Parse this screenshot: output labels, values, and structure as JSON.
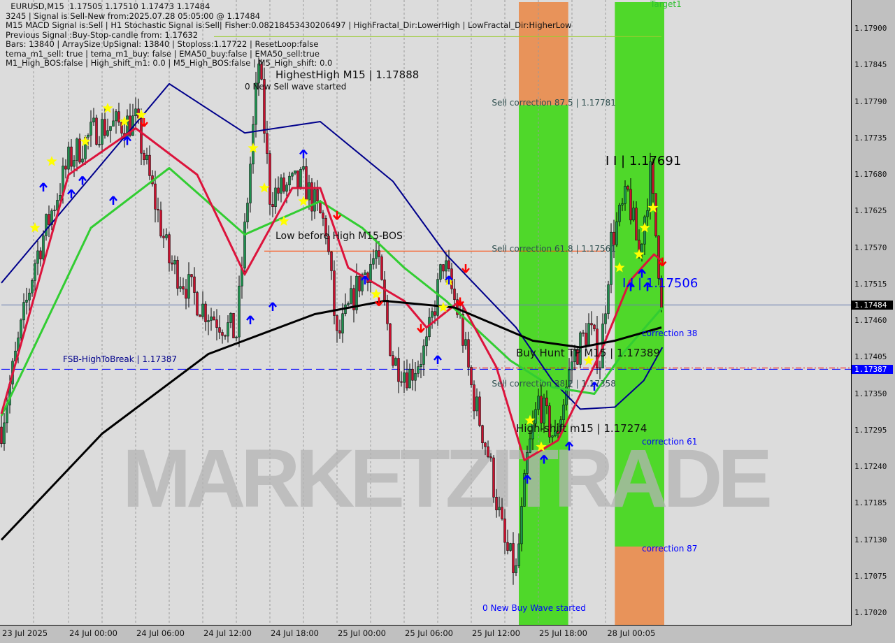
{
  "header": {
    "lines": [
      "  EURUSD,M15  1.17505 1.17510 1.17473 1.17484",
      "3245 | Signal is Sell-New from:2025.07.28 05:05:00 @ 1.17484",
      "M15 MACD Signal is:Sell | H1 Stochastic Signal is:Sell| Fisher:0.08218453430206497 | HighFractal_Dir:LowerHigh | LowFractal_Dir:HigherLow",
      "Previous Signal :Buy-Stop-candle from: 1.17632",
      "Bars: 13840 | ArraySize UpSignal: 13840 | Stoploss:1.17722 | ResetLoop:false",
      "tema_m1_sell: true | tema_m1_buy: false | EMA50_buy:false | EMA50_sell:true",
      "M1_High_BOS:false | High_shift_m1: 0.0 | M5_High_BOS:false | M5_High_shift: 0.0"
    ]
  },
  "watermark": "MARKETZITRADE",
  "colors": {
    "bull": "#1e8f4e",
    "bear": "#c8102e",
    "ema_fast": "#dc143c",
    "ema_mid": "#32cd32",
    "ema_slow": "#00008b",
    "ema_long": "#000000",
    "band_green": "#4fd82a",
    "band_orange": "#e8935a",
    "star": "#ffff00",
    "arrow_up": "#0000ff",
    "arrow_down": "#ff0000"
  },
  "chart_data": {
    "type": "candlestick",
    "symbol": "EURUSD",
    "timeframe": "M15",
    "ylim": [
      1.1699,
      1.1794
    ],
    "y_ticks": [
      "1.17900",
      "1.17845",
      "1.17790",
      "1.17735",
      "1.17680",
      "1.17625",
      "1.17570",
      "1.17515",
      "1.17460",
      "1.17405",
      "1.17350",
      "1.17295",
      "1.17240",
      "1.17185",
      "1.17130",
      "1.17075",
      "1.17020"
    ],
    "x_ticks": [
      {
        "t": "07-23 18:00",
        "label": "23 Jul 2025"
      },
      {
        "t": "07-24 00:00",
        "label": "24 Jul 00:00"
      },
      {
        "t": "07-24 06:00",
        "label": "24 Jul 06:00"
      },
      {
        "t": "07-24 12:00",
        "label": "24 Jul 12:00"
      },
      {
        "t": "07-24 18:00",
        "label": "24 Jul 18:00"
      },
      {
        "t": "07-25 00:00",
        "label": "25 Jul 00:00"
      },
      {
        "t": "07-25 06:00",
        "label": "25 Jul 06:00"
      },
      {
        "t": "07-25 12:00",
        "label": "25 Jul 12:00"
      },
      {
        "t": "07-25 18:00",
        "label": "25 Jul 18:00"
      },
      {
        "t": "07-28 00:05",
        "label": "28 Jul 00:05"
      }
    ],
    "price_badges": [
      {
        "price": 1.17484,
        "label": "1.17484",
        "color": "#000000"
      },
      {
        "price": 1.17387,
        "label": "1.17387",
        "color": "#0000ff"
      }
    ],
    "price_path": [
      [
        "07-23 18:00",
        1.173
      ],
      [
        "07-23 21:00",
        1.1755
      ],
      [
        "07-24 00:00",
        1.177
      ],
      [
        "07-24 02:30",
        1.1775
      ],
      [
        "07-24 06:00",
        1.1776
      ],
      [
        "07-24 09:00",
        1.1755
      ],
      [
        "07-24 12:00",
        1.1748
      ],
      [
        "07-24 15:00",
        1.1744
      ],
      [
        "07-24 17:00",
        1.1785
      ],
      [
        "07-24 18:00",
        1.1765
      ],
      [
        "07-24 21:00",
        1.1767
      ],
      [
        "07-24 23:00",
        1.176
      ],
      [
        "07-25 00:00",
        1.1743
      ],
      [
        "07-25 02:00",
        1.1752
      ],
      [
        "07-25 03:30",
        1.1756
      ],
      [
        "07-25 05:00",
        1.174
      ],
      [
        "07-25 06:30",
        1.1738
      ],
      [
        "07-25 08:00",
        1.1742
      ],
      [
        "07-25 09:30",
        1.1755
      ],
      [
        "07-25 11:00",
        1.1746
      ],
      [
        "07-25 12:00",
        1.1736
      ],
      [
        "07-25 13:30",
        1.1726
      ],
      [
        "07-25 15:00",
        1.1712
      ],
      [
        "07-25 16:00",
        1.1708
      ],
      [
        "07-25 17:00",
        1.1725
      ],
      [
        "07-25 18:00",
        1.1734
      ],
      [
        "07-25 19:30",
        1.1728
      ],
      [
        "07-25 21:00",
        1.174
      ],
      [
        "07-25 22:30",
        1.1745
      ],
      [
        "07-25 23:30",
        1.174
      ],
      [
        "07-28 00:30",
        1.1758
      ],
      [
        "07-28 02:00",
        1.1765
      ],
      [
        "07-28 03:00",
        1.1756
      ],
      [
        "07-28 04:00",
        1.1768
      ],
      [
        "07-28 05:05",
        1.17484
      ]
    ],
    "series": [
      {
        "key": "ema_slow",
        "values": [
          [
            "07-23 18:00",
            1.17517
          ],
          [
            "07-24 09:00",
            1.17817
          ],
          [
            "07-24 15:45",
            1.17743
          ],
          [
            "07-24 22:30",
            1.1776
          ],
          [
            "07-25 05:00",
            1.1767
          ],
          [
            "07-25 09:45",
            1.1756
          ],
          [
            "07-25 16:00",
            1.1745
          ],
          [
            "07-25 19:15",
            1.1737
          ],
          [
            "07-25 21:45",
            1.17327
          ],
          [
            "07-28 00:50",
            1.1733
          ],
          [
            "07-28 03:25",
            1.1737
          ],
          [
            "07-28 05:05",
            1.1742
          ]
        ]
      },
      {
        "key": "ema_mid",
        "values": [
          [
            "07-23 18:00",
            1.17317
          ],
          [
            "07-24 02:00",
            1.176
          ],
          [
            "07-24 09:00",
            1.1769
          ],
          [
            "07-24 15:45",
            1.1759
          ],
          [
            "07-24 22:30",
            1.1764
          ],
          [
            "07-25 02:15",
            1.176
          ],
          [
            "07-25 06:00",
            1.1754
          ],
          [
            "07-25 09:45",
            1.1749
          ],
          [
            "07-25 15:30",
            1.174
          ],
          [
            "07-25 19:15",
            1.1736
          ],
          [
            "07-25 23:00",
            1.1735
          ],
          [
            "07-28 01:30",
            1.1741
          ],
          [
            "07-28 05:05",
            1.1748
          ]
        ]
      },
      {
        "key": "ema_fast",
        "values": [
          [
            "07-23 18:00",
            1.1732
          ],
          [
            "07-24 00:00",
            1.1768
          ],
          [
            "07-24 06:00",
            1.1775
          ],
          [
            "07-24 11:30",
            1.1768
          ],
          [
            "07-24 15:45",
            1.1753
          ],
          [
            "07-24 20:00",
            1.1766
          ],
          [
            "07-24 22:30",
            1.1766
          ],
          [
            "07-25 01:00",
            1.1754
          ],
          [
            "07-25 06:00",
            1.1749
          ],
          [
            "07-25 08:00",
            1.1745
          ],
          [
            "07-25 11:00",
            1.1749
          ],
          [
            "07-25 14:15",
            1.1739
          ],
          [
            "07-25 16:45",
            1.1725
          ],
          [
            "07-25 19:45",
            1.1728
          ],
          [
            "07-25 23:30",
            1.1741
          ],
          [
            "07-28 02:10",
            1.1752
          ],
          [
            "07-28 04:20",
            1.1756
          ],
          [
            "07-28 05:05",
            1.1755
          ]
        ]
      },
      {
        "key": "ema_long",
        "values": [
          [
            "07-23 18:00",
            1.1713
          ],
          [
            "07-24 03:00",
            1.1729
          ],
          [
            "07-24 12:30",
            1.1741
          ],
          [
            "07-24 22:00",
            1.1747
          ],
          [
            "07-25 04:15",
            1.1749
          ],
          [
            "07-25 10:30",
            1.1748
          ],
          [
            "07-25 17:30",
            1.1743
          ],
          [
            "07-25 21:45",
            1.1742
          ],
          [
            "07-28 00:50",
            1.1743
          ],
          [
            "07-28 05:00",
            1.1745
          ]
        ]
      }
    ],
    "bands": [
      {
        "from": "07-25 16:15",
        "to": "07-25 20:40",
        "segments": [
          {
            "top": 1.1794,
            "bottom": 1.17785,
            "color": "band_orange"
          },
          {
            "top": 1.17785,
            "bottom": 1.1699,
            "color": "band_green"
          }
        ]
      },
      {
        "from": "07-28 00:50",
        "to": "07-28 05:15",
        "segments": [
          {
            "top": 1.1794,
            "bottom": 1.1712,
            "color": "band_green"
          },
          {
            "top": 1.1712,
            "bottom": 1.1699,
            "color": "band_orange"
          }
        ]
      }
    ],
    "hlines": [
      {
        "price": 1.17387,
        "color": "#0000ff",
        "dash": "12,6",
        "from": "07-23 18:00"
      },
      {
        "price": 1.17389,
        "color": "#ff0000",
        "dash": "8,3,2,3",
        "from": "07-25 12:00"
      },
      {
        "price": 1.17484,
        "color": "#6a7fb0",
        "dash": "",
        "from": "07-23 18:00"
      },
      {
        "price": 1.17565,
        "color": "#ff4500",
        "dash": "",
        "from": "07-24 17:30",
        "to": "07-28 00:00"
      },
      {
        "price": 1.17888,
        "color": "#9acd32",
        "dash": "",
        "from": "07-24 13:00",
        "to": "07-28 05:00"
      }
    ],
    "labels": [
      {
        "text": "HighestHigh   M15 | 1.17888",
        "t": "07-24 18:30",
        "price": 1.17888,
        "color": "#111",
        "size": 15
      },
      {
        "text": "0 New Sell wave started",
        "t": "07-24 15:45",
        "price": 1.17862,
        "color": "#111",
        "size": 12
      },
      {
        "text": "Target1",
        "t": "07-28 04:00",
        "price": 1.1793,
        "color": "#2fbf2f",
        "size": 12
      },
      {
        "text": "Sell correction 87.5 | 1.17781",
        "t": "07-25 13:50",
        "price": 1.17781,
        "color": "#2f4f4f",
        "size": 12
      },
      {
        "text": "I I | 1.17691",
        "t": "07-28 00:00",
        "price": 1.17691,
        "color": "#000",
        "size": 18
      },
      {
        "text": "Low before High   M15-BOS",
        "t": "07-24 18:30",
        "price": 1.1758,
        "color": "#111",
        "size": 14
      },
      {
        "text": "Sell correction 61.8 | 1.17561",
        "t": "07-25 13:50",
        "price": 1.17561,
        "color": "#2f4f4f",
        "size": 12
      },
      {
        "text": "I I | 1.17506",
        "t": "07-28 01:30",
        "price": 1.17506,
        "color": "#0000ff",
        "size": 18
      },
      {
        "text": "correction 38",
        "t": "07-28 03:15",
        "price": 1.17434,
        "color": "#0000ff",
        "size": 12
      },
      {
        "text": "Buy Hunt TP M15 | 1.17389",
        "t": "07-25 16:00",
        "price": 1.17403,
        "color": "#111",
        "size": 15
      },
      {
        "text": "FSB-HighToBreak | 1.17387",
        "t": "07-23 23:30",
        "price": 1.17395,
        "color": "#00008b",
        "size": 12
      },
      {
        "text": "Sell correction 38.2 | 1.17358",
        "t": "07-25 13:50",
        "price": 1.17358,
        "color": "#2f4f4f",
        "size": 12
      },
      {
        "text": "High-shift m15 | 1.17274",
        "t": "07-25 16:00",
        "price": 1.1729,
        "color": "#111",
        "size": 15
      },
      {
        "text": "correction 61",
        "t": "07-28 03:15",
        "price": 1.17274,
        "color": "#0000ff",
        "size": 12
      },
      {
        "text": "correction 87",
        "t": "07-28 03:15",
        "price": 1.1711,
        "color": "#0000ff",
        "size": 12
      },
      {
        "text": "0 New Buy Wave started",
        "t": "07-25 13:00",
        "price": 1.1702,
        "color": "#0000ff",
        "size": 12
      }
    ],
    "stars": [
      [
        "07-23 21:00",
        1.176
      ],
      [
        "07-23 22:30",
        1.177
      ],
      [
        "07-24 01:30",
        1.1773
      ],
      [
        "07-24 03:30",
        1.1778
      ],
      [
        "07-24 05:00",
        1.1776
      ],
      [
        "07-24 06:30",
        1.1777
      ],
      [
        "07-24 16:30",
        1.1772
      ],
      [
        "07-24 17:30",
        1.1766
      ],
      [
        "07-24 19:15",
        1.1761
      ],
      [
        "07-24 21:00",
        1.1764
      ],
      [
        "07-25 03:30",
        1.175
      ],
      [
        "07-25 09:30",
        1.1748
      ],
      [
        "07-25 10:00",
        1.1752
      ],
      [
        "07-25 17:15",
        1.1731
      ],
      [
        "07-25 18:15",
        1.1727
      ],
      [
        "07-25 22:30",
        1.174
      ],
      [
        "07-28 01:15",
        1.1754
      ],
      [
        "07-28 03:00",
        1.1756
      ],
      [
        "07-28 03:30",
        1.176
      ],
      [
        "07-28 04:15",
        1.1763
      ]
    ],
    "arrows_up": [
      [
        "07-23 21:45",
        1.1766
      ],
      [
        "07-24 00:15",
        1.1765
      ],
      [
        "07-24 01:15",
        1.1767
      ],
      [
        "07-24 04:00",
        1.1764
      ],
      [
        "07-24 05:15",
        1.1773
      ],
      [
        "07-24 16:15",
        1.1746
      ],
      [
        "07-24 18:15",
        1.1748
      ],
      [
        "07-24 21:00",
        1.1771
      ],
      [
        "07-25 02:30",
        1.1752
      ],
      [
        "07-25 09:00",
        1.174
      ],
      [
        "07-25 10:00",
        1.1752
      ],
      [
        "07-25 17:00",
        1.1722
      ],
      [
        "07-25 18:30",
        1.1725
      ],
      [
        "07-25 20:45",
        1.1727
      ],
      [
        "07-25 23:00",
        1.1736
      ],
      [
        "07-28 02:15",
        1.1751
      ],
      [
        "07-28 03:15",
        1.1753
      ],
      [
        "07-28 03:45",
        1.1751
      ]
    ],
    "arrows_down": [
      [
        "07-24 06:45",
        1.1776
      ],
      [
        "07-25 00:00",
        1.1762
      ],
      [
        "07-25 03:45",
        1.1749
      ],
      [
        "07-25 07:30",
        1.1745
      ],
      [
        "07-25 11:00",
        1.1749
      ],
      [
        "07-25 11:30",
        1.1754
      ],
      [
        "07-28 05:05",
        1.1755
      ]
    ]
  }
}
